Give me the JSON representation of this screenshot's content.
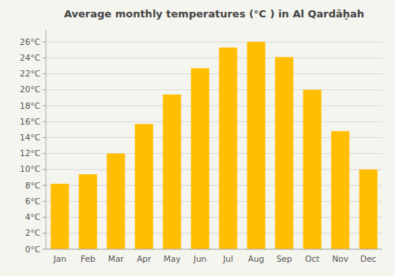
{
  "chart_data": {
    "type": "bar",
    "title": "Average monthly temperatures (°C ) in Al Qardāḥah",
    "categories": [
      "Jan",
      "Feb",
      "Mar",
      "Apr",
      "May",
      "Jun",
      "Jul",
      "Aug",
      "Sep",
      "Oct",
      "Nov",
      "Dec"
    ],
    "values": [
      8.2,
      9.4,
      12.0,
      15.7,
      19.4,
      22.7,
      25.3,
      26.0,
      24.1,
      20.0,
      14.8,
      10.0
    ],
    "color": "#FFBE00",
    "ylim": [
      0,
      27.5
    ],
    "yticks": [
      {
        "value": 0,
        "label": "0°C"
      },
      {
        "value": 2,
        "label": "2°C"
      },
      {
        "value": 4,
        "label": "4°C"
      },
      {
        "value": 6,
        "label": "6°C"
      },
      {
        "value": 8,
        "label": "8°C"
      },
      {
        "value": 10,
        "label": "10°C"
      },
      {
        "value": 12,
        "label": "12°C"
      },
      {
        "value": 14,
        "label": "14°C"
      },
      {
        "value": 16,
        "label": "16°C"
      },
      {
        "value": 18,
        "label": "18°C"
      },
      {
        "value": 20,
        "label": "20°C"
      },
      {
        "value": 22,
        "label": "22°C"
      },
      {
        "value": 24,
        "label": "24°C"
      },
      {
        "value": 26,
        "label": "26°C"
      }
    ],
    "grid": true
  }
}
